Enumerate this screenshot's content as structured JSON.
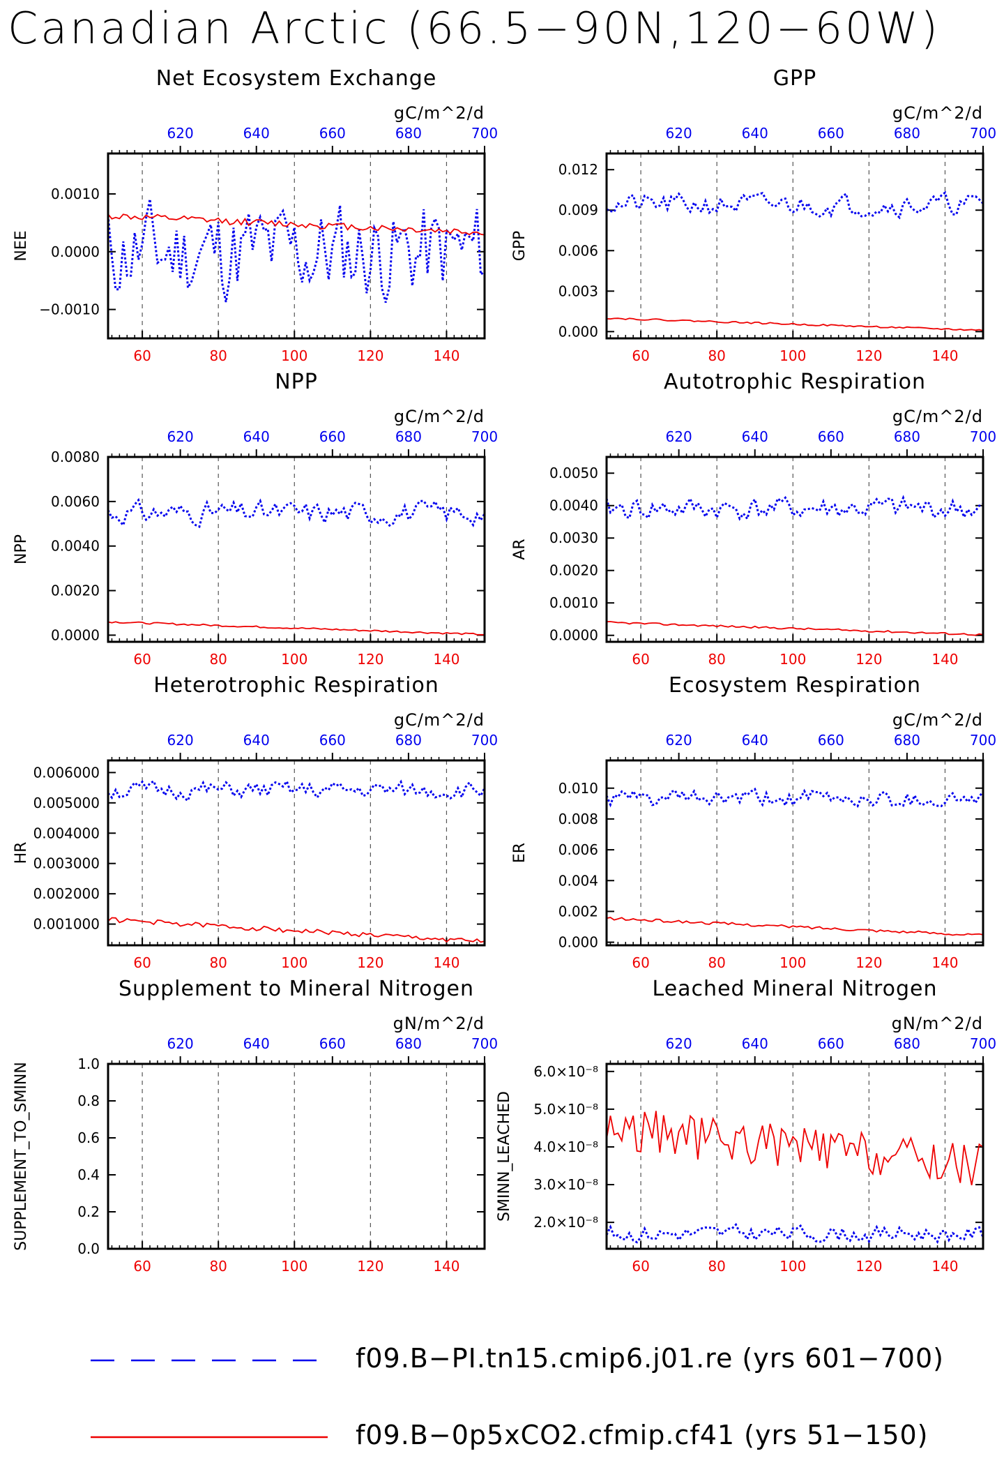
{
  "title": "Canadian Arctic (66.5−90N,120−60W)",
  "colors": {
    "case1": "#0000ee",
    "case2": "#ee0000",
    "axis": "#000000",
    "grid": "#555555"
  },
  "legend": {
    "entries": [
      {
        "label": "f09.B−PI.tn15.cmip6.j01.re (yrs 601−700)",
        "style": "dashed",
        "color": "#0000ee"
      },
      {
        "label": "f09.B−0p5xCO2.cfmip.cf41 (yrs 51−150)",
        "style": "solid",
        "color": "#ee0000"
      }
    ]
  },
  "chart_data": [
    {
      "type": "line",
      "title": "Net Ecosystem Exchange",
      "ylabel": "NEE",
      "units": "gC/m^2/d",
      "xlim": [
        51,
        150
      ],
      "x2lim": [
        601,
        700
      ],
      "ylim": [
        -0.0015,
        0.0017
      ],
      "yticks": [
        -0.001,
        0,
        0.001
      ],
      "yticklabels": [
        "−0.0010",
        "0.0000",
        "0.0010"
      ],
      "xticks": [
        60,
        80,
        100,
        120,
        140
      ],
      "x2ticks": [
        620,
        640,
        660,
        680,
        700
      ],
      "series": [
        {
          "label": "case1",
          "mean": 0.0,
          "amp": 0.0012,
          "seed": 11
        },
        {
          "label": "case2",
          "start": 0.00062,
          "end": 0.00033,
          "amp": 6e-05,
          "seed": 12
        }
      ]
    },
    {
      "type": "line",
      "title": "GPP",
      "ylabel": "GPP",
      "units": "gC/m^2/d",
      "xlim": [
        51,
        150
      ],
      "x2lim": [
        601,
        700
      ],
      "ylim": [
        -0.0005,
        0.0132
      ],
      "yticks": [
        0,
        0.003,
        0.006,
        0.009,
        0.012
      ],
      "yticklabels": [
        "0.000",
        "0.003",
        "0.006",
        "0.009",
        "0.012"
      ],
      "xticks": [
        60,
        80,
        100,
        120,
        140
      ],
      "x2ticks": [
        620,
        640,
        660,
        680,
        700
      ],
      "series": [
        {
          "label": "case1",
          "mean": 0.0094,
          "amp": 0.0011,
          "seed": 21
        },
        {
          "label": "case2",
          "start": 0.001,
          "end": 0.0001,
          "amp": 6e-05,
          "seed": 22
        }
      ]
    },
    {
      "type": "line",
      "title": "NPP",
      "ylabel": "NPP",
      "units": "gC/m^2/d",
      "xlim": [
        51,
        150
      ],
      "x2lim": [
        601,
        700
      ],
      "ylim": [
        -0.0003,
        0.008
      ],
      "yticks": [
        0,
        0.002,
        0.004,
        0.006,
        0.008
      ],
      "yticklabels": [
        "0.0000",
        "0.0020",
        "0.0040",
        "0.0060",
        "0.0080"
      ],
      "xticks": [
        60,
        80,
        100,
        120,
        140
      ],
      "x2ticks": [
        620,
        640,
        660,
        680,
        700
      ],
      "series": [
        {
          "label": "case1",
          "mean": 0.0055,
          "amp": 0.0007,
          "seed": 31
        },
        {
          "label": "case2",
          "start": 0.0006,
          "end": 3e-05,
          "amp": 4e-05,
          "seed": 32
        }
      ]
    },
    {
      "type": "line",
      "title": "Autotrophic Respiration",
      "ylabel": "AR",
      "units": "gC/m^2/d",
      "xlim": [
        51,
        150
      ],
      "x2lim": [
        601,
        700
      ],
      "ylim": [
        -0.0002,
        0.0055
      ],
      "yticks": [
        0,
        0.001,
        0.002,
        0.003,
        0.004,
        0.005
      ],
      "yticklabels": [
        "0.0000",
        "0.0010",
        "0.0020",
        "0.0030",
        "0.0040",
        "0.0050"
      ],
      "xticks": [
        60,
        80,
        100,
        120,
        140
      ],
      "x2ticks": [
        620,
        640,
        660,
        680,
        700
      ],
      "series": [
        {
          "label": "case1",
          "mean": 0.0039,
          "amp": 0.0005,
          "seed": 41
        },
        {
          "label": "case2",
          "start": 0.0004,
          "end": 2e-05,
          "amp": 3e-05,
          "seed": 42
        }
      ]
    },
    {
      "type": "line",
      "title": "Heterotrophic Respiration",
      "ylabel": "HR",
      "units": "gC/m^2/d",
      "xlim": [
        51,
        150
      ],
      "x2lim": [
        601,
        700
      ],
      "ylim": [
        0.0003,
        0.0064
      ],
      "yticks": [
        0.001,
        0.002,
        0.003,
        0.004,
        0.005,
        0.006
      ],
      "yticklabels": [
        "0.001000",
        "0.002000",
        "0.003000",
        "0.004000",
        "0.005000",
        "0.006000"
      ],
      "xticks": [
        60,
        80,
        100,
        120,
        140
      ],
      "x2ticks": [
        620,
        640,
        660,
        680,
        700
      ],
      "series": [
        {
          "label": "case1",
          "mean": 0.0054,
          "amp": 0.0004,
          "seed": 51
        },
        {
          "label": "case2",
          "start": 0.00115,
          "end": 0.00042,
          "amp": 8e-05,
          "seed": 52
        }
      ]
    },
    {
      "type": "line",
      "title": "Ecosystem Respiration",
      "ylabel": "ER",
      "units": "gC/m^2/d",
      "xlim": [
        51,
        150
      ],
      "x2lim": [
        601,
        700
      ],
      "ylim": [
        -0.0002,
        0.0118
      ],
      "yticks": [
        0,
        0.002,
        0.004,
        0.006,
        0.008,
        0.01
      ],
      "yticklabels": [
        "0.000",
        "0.002",
        "0.004",
        "0.006",
        "0.008",
        "0.010"
      ],
      "xticks": [
        60,
        80,
        100,
        120,
        140
      ],
      "x2ticks": [
        620,
        640,
        660,
        680,
        700
      ],
      "series": [
        {
          "label": "case1",
          "mean": 0.0093,
          "amp": 0.0008,
          "seed": 61
        },
        {
          "label": "case2",
          "start": 0.00155,
          "end": 0.00045,
          "amp": 9e-05,
          "seed": 62
        }
      ]
    },
    {
      "type": "line",
      "title": "Supplement to Mineral Nitrogen",
      "ylabel": "SUPPLEMENT_TO_SMINN",
      "units": "gN/m^2/d",
      "xlim": [
        51,
        150
      ],
      "x2lim": [
        601,
        700
      ],
      "ylim": [
        0,
        1
      ],
      "yticks": [
        0,
        0.2,
        0.4,
        0.6,
        0.8,
        1.0
      ],
      "yticklabels": [
        "0.0",
        "0.2",
        "0.4",
        "0.6",
        "0.8",
        "1.0"
      ],
      "xticks": [
        60,
        80,
        100,
        120,
        140
      ],
      "x2ticks": [
        620,
        640,
        660,
        680,
        700
      ],
      "series": []
    },
    {
      "type": "line",
      "title": "Leached Mineral Nitrogen",
      "ylabel": "SMINN_LEACHED",
      "units": "gN/m^2/d",
      "xlim": [
        51,
        150
      ],
      "x2lim": [
        601,
        700
      ],
      "ylim": [
        1.3e-08,
        6.2e-08
      ],
      "yticks": [
        2e-08,
        3e-08,
        4e-08,
        5e-08,
        6e-08
      ],
      "yticklabels": [
        "2.0",
        "3.0",
        "4.0",
        "5.0",
        "6.0"
      ],
      "ytickexp": "×10⁻⁸",
      "xticks": [
        60,
        80,
        100,
        120,
        140
      ],
      "x2ticks": [
        620,
        640,
        660,
        680,
        700
      ],
      "series": [
        {
          "label": "case1",
          "mean": 1.7e-08,
          "amp": 3e-09,
          "seed": 81
        },
        {
          "label": "case2",
          "start": 4.5e-08,
          "end": 3.5e-08,
          "amp": 6e-09,
          "seed": 82
        }
      ]
    }
  ]
}
